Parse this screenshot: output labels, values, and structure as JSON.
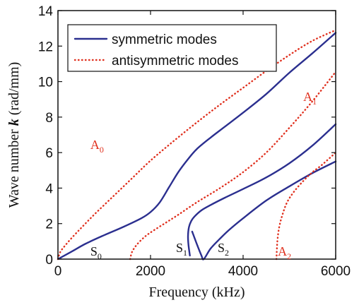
{
  "chart_data": {
    "type": "line",
    "xlabel": "Frequency (kHz)",
    "ylabel_prefix": "Wave number ",
    "ylabel_symbol": "k",
    "ylabel_suffix": " (rad/mm)",
    "xlim": [
      0,
      6000
    ],
    "ylim": [
      0,
      14
    ],
    "xticks": [
      0,
      2000,
      4000,
      6000
    ],
    "yticks": [
      0,
      2,
      4,
      6,
      8,
      10,
      12,
      14
    ],
    "grid": false,
    "legend_position": "top-left",
    "legend": [
      {
        "label": "symmetric modes",
        "style": "solid",
        "color": "#2b2f8f"
      },
      {
        "label": "antisymmetric modes",
        "style": "dotted",
        "color": "#e0301e"
      }
    ],
    "series": [
      {
        "label": "S",
        "sub": "0",
        "group": "symmetric",
        "color": "#2b2f8f",
        "style": "solid",
        "x": [
          0,
          300,
          600,
          1000,
          1400,
          1800,
          2000,
          2200,
          2400,
          2600,
          2800,
          3000,
          3300,
          3600,
          4000,
          4500,
          5000,
          5500,
          6000
        ],
        "y": [
          0,
          0.43,
          0.87,
          1.35,
          1.8,
          2.3,
          2.65,
          3.2,
          4.05,
          4.9,
          5.6,
          6.2,
          6.85,
          7.45,
          8.25,
          9.3,
          10.5,
          11.6,
          12.75
        ]
      },
      {
        "label": "S",
        "sub": "1",
        "group": "symmetric",
        "color": "#2b2f8f",
        "style": "solid",
        "x": [
          2850,
          2820,
          2810,
          2830,
          2880,
          2950,
          3100,
          3300,
          3600,
          4000,
          4500,
          5000,
          5500,
          6000
        ],
        "y": [
          0.2,
          0.8,
          1.3,
          1.8,
          2.15,
          2.4,
          2.75,
          3.05,
          3.45,
          3.95,
          4.6,
          5.4,
          6.4,
          7.6
        ]
      },
      {
        "label": "S",
        "sub": "2",
        "group": "symmetric",
        "color": "#2b2f8f",
        "style": "solid",
        "x": [
          2900,
          3000,
          3100,
          3150,
          3300,
          3500,
          3700,
          4000,
          4500,
          5000,
          5500,
          6000
        ],
        "y": [
          1.55,
          0.85,
          0.2,
          0,
          0.6,
          1.15,
          1.65,
          2.3,
          3.3,
          4.1,
          4.85,
          5.5
        ]
      },
      {
        "label": "A",
        "sub": "0",
        "group": "antisymmetric",
        "color": "#e0301e",
        "style": "dotted",
        "x": [
          0,
          50,
          150,
          300,
          500,
          800,
          1200,
          1600,
          2000,
          2500,
          3000,
          3500,
          4000,
          4500,
          5000,
          5500,
          6000
        ],
        "y": [
          0,
          0.4,
          0.75,
          1.2,
          1.75,
          2.55,
          3.55,
          4.55,
          5.55,
          6.65,
          7.7,
          8.7,
          9.65,
          10.6,
          11.5,
          12.3,
          12.9
        ]
      },
      {
        "label": "A",
        "sub": "1",
        "group": "antisymmetric",
        "color": "#e0301e",
        "style": "dotted",
        "x": [
          1560,
          1600,
          1700,
          1850,
          2000,
          2300,
          2600,
          3000,
          3500,
          4000,
          4500,
          5000,
          5500,
          6000
        ],
        "y": [
          0,
          0.4,
          0.8,
          1.2,
          1.5,
          2.0,
          2.5,
          3.2,
          4.0,
          4.9,
          6.0,
          7.4,
          8.9,
          10.55
        ]
      },
      {
        "label": "A",
        "sub": "2",
        "group": "antisymmetric",
        "color": "#e0301e",
        "style": "dotted",
        "x": [
          4720,
          4740,
          4780,
          4850,
          4950,
          5100,
          5300,
          5500,
          5700,
          6000
        ],
        "y": [
          0,
          1.0,
          1.8,
          2.5,
          3.2,
          3.8,
          4.4,
          4.9,
          5.3,
          6.0
        ]
      }
    ],
    "annotations": [
      {
        "label": "A",
        "sub": "0",
        "x": 2300,
        "y": 3.9,
        "color": "#e0301e"
      },
      {
        "label": "A",
        "sub": "1",
        "x": 2250,
        "y": 2.05,
        "color": "#e0301e"
      },
      {
        "label": "A",
        "sub": "2",
        "x": 2140,
        "y": 0.55,
        "color": "#e0301e"
      },
      {
        "label": "S",
        "sub": "0",
        "x": 1850,
        "y": 2.25,
        "color": "#111111"
      },
      {
        "label": "S",
        "sub": "1",
        "x": 1830,
        "y": 2.15,
        "color": "#111111"
      },
      {
        "label": "S",
        "sub": "2",
        "x": 2040,
        "y": 2.05,
        "color": "#111111"
      }
    ]
  }
}
